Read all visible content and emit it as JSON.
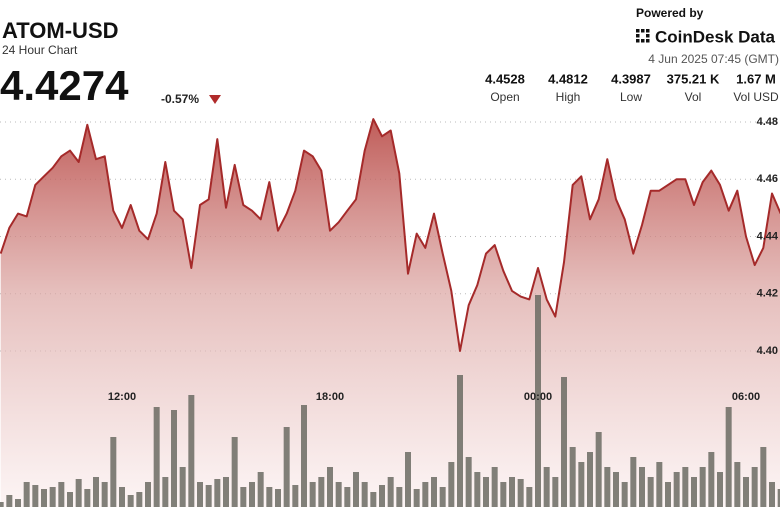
{
  "chart_data": {
    "type": "area",
    "title": "ATOM-USD",
    "subtitle": "24 Hour Chart",
    "price": "4.4274",
    "change": "-0.57%",
    "source": "Powered by",
    "brand": "CoinDesk Data",
    "date": "4 Jun 2025 07:45 (GMT)",
    "stats": [
      {
        "value": "4.4528",
        "label": "Open"
      },
      {
        "value": "4.4812",
        "label": "High"
      },
      {
        "value": "4.3987",
        "label": "Low"
      },
      {
        "value": "375.21 K",
        "label": "Vol"
      },
      {
        "value": "1.67 M",
        "label": "Vol USD"
      }
    ],
    "categories": [
      null,
      null,
      null,
      null,
      null,
      null,
      null,
      null,
      null,
      null,
      null,
      null,
      null,
      null,
      "12:00",
      null,
      null,
      null,
      null,
      null,
      null,
      null,
      null,
      null,
      null,
      null,
      null,
      null,
      null,
      null,
      null,
      null,
      null,
      null,
      null,
      null,
      null,
      null,
      "18:00",
      null,
      null,
      null,
      null,
      null,
      null,
      null,
      null,
      null,
      null,
      null,
      null,
      null,
      null,
      null,
      null,
      null,
      null,
      null,
      null,
      null,
      null,
      null,
      "00:00",
      null,
      null,
      null,
      null,
      null,
      null,
      null,
      null,
      null,
      null,
      null,
      null,
      null,
      null,
      null,
      null,
      null,
      null,
      null,
      null,
      null,
      null,
      null,
      "06:00",
      null,
      null,
      null,
      null
    ],
    "values": [
      4.434,
      4.443,
      4.448,
      4.447,
      4.458,
      4.461,
      4.464,
      4.468,
      4.47,
      4.466,
      4.479,
      4.467,
      4.468,
      4.449,
      4.443,
      4.451,
      4.442,
      4.439,
      4.448,
      4.466,
      4.449,
      4.446,
      4.429,
      4.451,
      4.453,
      4.474,
      4.45,
      4.465,
      4.451,
      4.449,
      4.446,
      4.459,
      4.442,
      4.448,
      4.456,
      4.47,
      4.468,
      4.463,
      4.442,
      4.445,
      4.449,
      4.453,
      4.47,
      4.481,
      4.475,
      4.477,
      4.462,
      4.427,
      4.441,
      4.436,
      4.448,
      4.434,
      4.421,
      4.4,
      4.416,
      4.423,
      4.434,
      4.437,
      4.428,
      4.421,
      4.419,
      4.418,
      4.429,
      4.418,
      4.412,
      4.431,
      4.458,
      4.461,
      4.446,
      4.453,
      4.467,
      4.453,
      4.446,
      4.434,
      4.444,
      4.456,
      4.456,
      4.458,
      4.46,
      4.46,
      4.451,
      4.459,
      4.463,
      4.458,
      4.449,
      4.456,
      4.44,
      4.43,
      4.436,
      4.455,
      4.448
    ],
    "volume": [
      5,
      12,
      8,
      25,
      22,
      18,
      20,
      25,
      15,
      28,
      18,
      30,
      25,
      70,
      20,
      12,
      15,
      25,
      100,
      30,
      97,
      40,
      112,
      25,
      22,
      28,
      30,
      70,
      20,
      25,
      35,
      20,
      18,
      80,
      22,
      102,
      25,
      30,
      40,
      25,
      20,
      35,
      25,
      15,
      22,
      30,
      20,
      55,
      18,
      25,
      30,
      20,
      45,
      132,
      50,
      35,
      30,
      40,
      25,
      30,
      28,
      20,
      212,
      40,
      30,
      130,
      60,
      45,
      55,
      75,
      40,
      35,
      25,
      50,
      40,
      30,
      45,
      25,
      35,
      40,
      30,
      40,
      55,
      35,
      100,
      45,
      30,
      40,
      60,
      25,
      18
    ],
    "color": "#a52a2a",
    "volume_color": "#6b6b63",
    "ylim": [
      4.3455,
      4.5226
    ],
    "yticks": [
      {
        "value": 4.4,
        "label": "4.40"
      },
      4.42,
      4.44,
      4.46,
      4.48
    ],
    "y2lim": [
      0,
      507
    ],
    "grid": true
  }
}
